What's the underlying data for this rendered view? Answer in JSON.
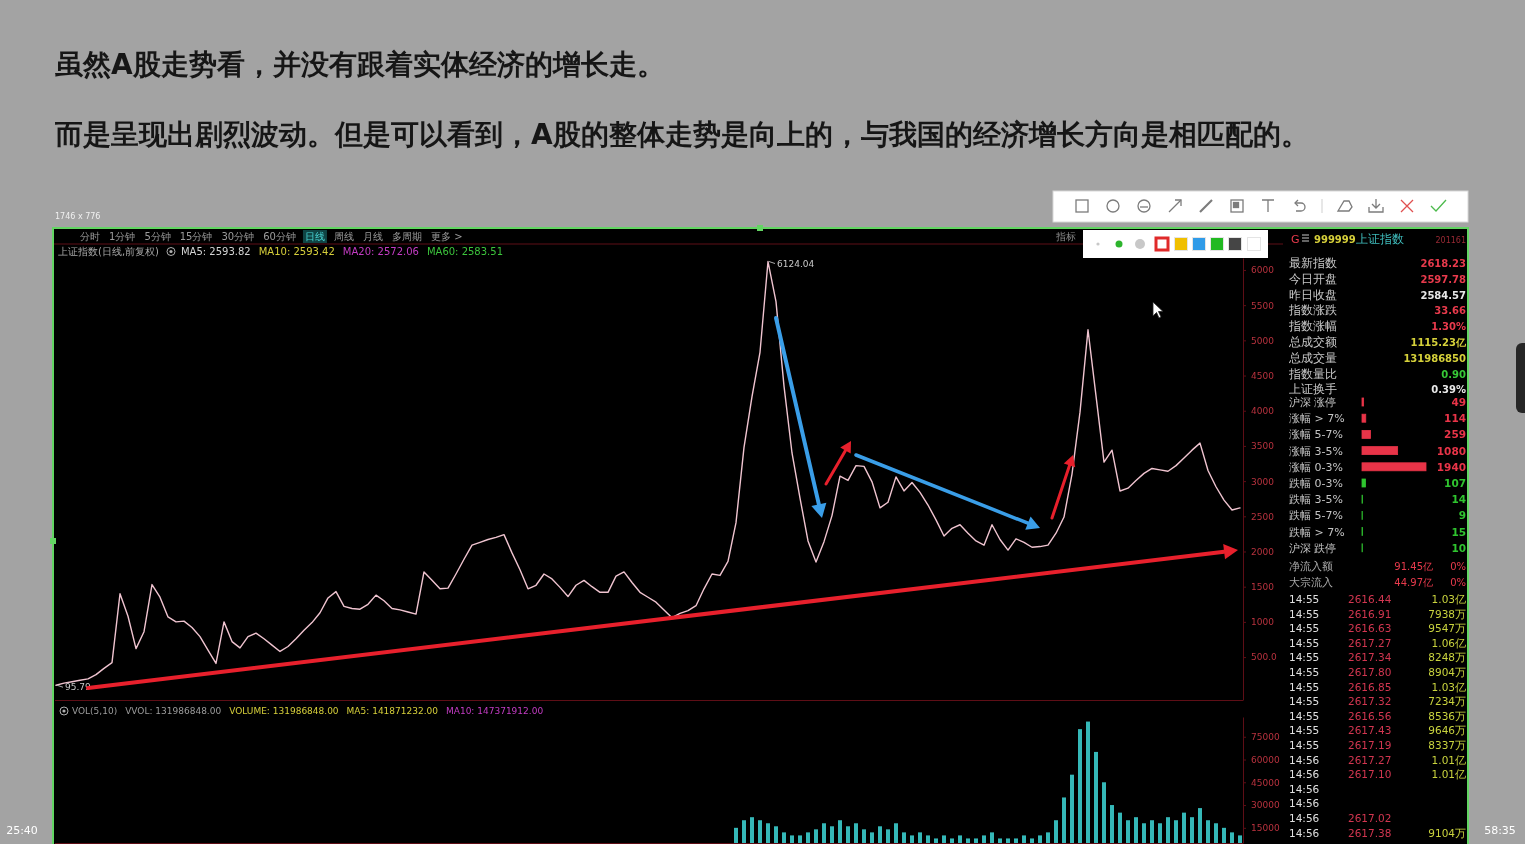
{
  "chart_data": [
    {
      "type": "line",
      "title": "虽然A股走势看，并没有跟着实体经济的增长走。",
      "subtitle": "而是呈现出剧烈波动。但是可以看到，A股的整体走势是向上的，与我国的经济增长方向是相匹配的。",
      "categories": [
        null,
        null,
        null,
        null,
        null,
        null,
        null,
        null,
        null,
        null,
        null,
        null,
        null,
        null,
        null,
        null,
        null,
        null,
        null,
        null,
        null,
        null,
        null,
        null,
        null,
        null,
        null,
        null,
        null,
        null,
        null,
        null,
        null,
        null,
        null,
        null,
        null,
        null,
        null,
        null,
        null,
        null,
        null,
        null,
        null,
        null,
        null,
        null,
        null,
        null,
        null,
        null,
        null,
        null,
        null,
        null,
        null,
        null,
        null,
        null,
        null,
        null,
        null,
        null,
        null,
        null,
        null,
        null,
        null,
        null,
        null,
        null,
        null,
        null,
        null,
        null,
        null,
        null,
        null,
        null,
        null,
        null,
        null,
        null,
        null,
        null,
        null,
        null,
        null,
        null,
        null,
        null,
        null,
        null,
        null,
        null,
        null,
        null,
        null,
        null,
        null,
        null,
        null,
        null,
        null,
        null,
        null,
        null,
        null,
        null,
        null,
        null,
        null,
        null,
        null,
        null,
        null,
        null,
        null,
        null,
        null,
        null,
        null,
        null,
        null,
        null,
        null,
        null,
        null,
        null,
        null,
        null,
        null,
        null,
        null,
        null,
        null,
        null,
        null,
        null,
        null,
        null,
        null,
        null,
        null,
        null,
        null,
        null,
        null
      ],
      "series": [
        {
          "color": "#f0c4d0",
          "values": [
            100,
            130,
            150,
            170,
            190,
            250,
            340,
            420,
            1400,
            1080,
            620,
            860,
            1530,
            1350,
            1070,
            1000,
            1010,
            920,
            790,
            600,
            410,
            1000,
            720,
            630,
            790,
            840,
            760,
            670,
            580,
            650,
            760,
            880,
            990,
            1130,
            1340,
            1430,
            1220,
            1190,
            1180,
            1250,
            1380,
            1300,
            1190,
            1170,
            1140,
            1110,
            1710,
            1590,
            1470,
            1480,
            1680,
            1890,
            2090,
            2130,
            2170,
            2200,
            2240,
            1980,
            1740,
            1470,
            1520,
            1680,
            1610,
            1490,
            1360,
            1520,
            1590,
            1500,
            1420,
            1420,
            1650,
            1710,
            1560,
            1420,
            1350,
            1280,
            1170,
            1060,
            1120,
            1160,
            1230,
            1470,
            1680,
            1660,
            1860,
            2410,
            3480,
            4200,
            4830,
            6120,
            5550,
            4350,
            3400,
            2760,
            2150,
            1850,
            2140,
            2510,
            3070,
            3010,
            3220,
            3210,
            2990,
            2620,
            2700,
            3060,
            2860,
            2980,
            2840,
            2660,
            2450,
            2220,
            2330,
            2380,
            2260,
            2150,
            2090,
            2380,
            2170,
            2020,
            2180,
            2130,
            2060,
            2070,
            2090,
            2260,
            2490,
            3100,
            3980,
            5150,
            4210,
            3270,
            3440,
            2860,
            2900,
            3010,
            3110,
            3180,
            3160,
            3140,
            3220,
            3330,
            3440,
            3540,
            3150,
            2920,
            2730,
            2590,
            2620
          ]
        }
      ],
      "ylim": [
        -110,
        6170
      ],
      "yticks": [
        {
          "value": 500,
          "label": "500.0"
        },
        1000,
        1500,
        2000,
        2500,
        3000,
        3500,
        4000,
        4500,
        5000,
        5500,
        6000
      ],
      "tick_labels": "y",
      "annotations": [
        "6124.04",
        "95.79",
        "1746 x 776",
        "分时",
        "1分钟",
        "5分钟",
        "15分钟",
        "30分钟",
        "60分钟",
        "日线",
        "周线",
        "月线",
        "多周期",
        "更多 >",
        "指标",
        "上证指数(日线,前复权)",
        "MA5: 2593.82",
        "MA10: 2593.42",
        "MA20: 2572.06",
        "MA60: 2583.51"
      ]
    },
    {
      "type": "bar",
      "categories": [
        null,
        null,
        null,
        null,
        null,
        null,
        null,
        null,
        null,
        null,
        null,
        null,
        null,
        null,
        null,
        null,
        null,
        null,
        null,
        null,
        null,
        null,
        null,
        null,
        null,
        null,
        null,
        null,
        null,
        null,
        null,
        null,
        null,
        null,
        null,
        null,
        null,
        null,
        null,
        null,
        null,
        null,
        null,
        null,
        null,
        null,
        null,
        null,
        null,
        null,
        null,
        null,
        null,
        null,
        null,
        null,
        null,
        null,
        null,
        null,
        null,
        null,
        null,
        null,
        null,
        null,
        null,
        null,
        null,
        null,
        null,
        null,
        null,
        null,
        null,
        null,
        null,
        null,
        null,
        null,
        null,
        null,
        null,
        null,
        null,
        null,
        null,
        null,
        null,
        null,
        null,
        null,
        null,
        null,
        null,
        null,
        null,
        null,
        null,
        null,
        null,
        null,
        null,
        null,
        null,
        null,
        null,
        null,
        null,
        null,
        null,
        null,
        null,
        null,
        null,
        null,
        null,
        null,
        null,
        null,
        null,
        null,
        null,
        null,
        null,
        null,
        null,
        null,
        null,
        null,
        null,
        null,
        null,
        null,
        null,
        null,
        null,
        null,
        null,
        null,
        null,
        null,
        null,
        null,
        null,
        null,
        null,
        null,
        null
      ],
      "values": [
        null,
        null,
        null,
        null,
        null,
        null,
        null,
        null,
        null,
        null,
        null,
        null,
        null,
        null,
        null,
        null,
        null,
        null,
        null,
        null,
        null,
        null,
        null,
        null,
        null,
        null,
        null,
        null,
        null,
        null,
        null,
        null,
        null,
        null,
        null,
        null,
        null,
        null,
        null,
        null,
        null,
        null,
        null,
        null,
        null,
        null,
        null,
        null,
        null,
        null,
        null,
        null,
        null,
        null,
        null,
        null,
        null,
        null,
        null,
        null,
        null,
        null,
        null,
        null,
        null,
        null,
        null,
        null,
        null,
        null,
        null,
        null,
        null,
        null,
        null,
        null,
        null,
        null,
        null,
        null,
        null,
        null,
        null,
        null,
        null,
        15000,
        20000,
        22000,
        20000,
        18000,
        16000,
        12000,
        10000,
        10000,
        12000,
        14000,
        18000,
        16000,
        20000,
        16000,
        18000,
        14000,
        12000,
        16000,
        14000,
        18000,
        12000,
        10000,
        12000,
        10000,
        8000,
        10000,
        8000,
        10000,
        8000,
        8000,
        10000,
        12000,
        8000,
        8000,
        8000,
        10000,
        8000,
        10000,
        12000,
        20000,
        35000,
        50000,
        80000,
        85000,
        65000,
        45000,
        30000,
        25000,
        20000,
        22000,
        18000,
        20000,
        18000,
        22000,
        20000,
        25000,
        22000,
        28000,
        20000,
        18000,
        15000,
        12000,
        10000
      ],
      "color": "#35b8b8",
      "ylim": [
        5000,
        88000
      ],
      "yticks": [
        15000,
        30000,
        45000,
        60000,
        75000
      ],
      "tick_labels": "y",
      "annotations": [
        "VOL(5,10)",
        "VVOL: 131986848.00",
        "VOLUME: 131986848.00",
        "MA5: 141871232.00",
        "MA10: 147371912.00"
      ]
    },
    {
      "type": "other",
      "annotations": [
        "G",
        "999999",
        "上证指数",
        "201161",
        "最新指数 2618.23",
        "今日开盘 2597.78",
        "昨日收盘 2584.57",
        "指数涨跌 33.66",
        "指数涨幅 1.30%",
        "总成交额 1115.23亿",
        "总成交量 131986850",
        "指数量比 0.90",
        "上证换手 0.39%"
      ]
    },
    {
      "type": "bar",
      "orientation": "horizontal",
      "categories": [
        "沪深 涨停",
        "涨幅 > 7%",
        "涨幅 5-7%",
        "涨幅 3-5%",
        "涨幅 0-3%",
        "跌幅 0-3%",
        "跌幅 3-5%",
        "跌幅 5-7%",
        "跌幅 > 7%",
        "沪深 跌停"
      ],
      "values": [
        49,
        114,
        259,
        1080,
        1940,
        107,
        14,
        9,
        15,
        10
      ],
      "colors": [
        "#e83448",
        "#e83448",
        "#e83448",
        "#e83448",
        "#e83448",
        "#2fc42f",
        "#2fc42f",
        "#2fc42f",
        "#2fc42f",
        "#2fc42f"
      ],
      "data_labels": true
    },
    {
      "type": "other",
      "annotations": [
        "净流入额 91.45亿 0%",
        "大宗流入 44.97亿 0%",
        "14:55 2616.44 1.03亿",
        "14:55 2616.91 7938万",
        "14:55 2616.63 9547万",
        "14:55 2617.27 1.06亿",
        "14:55 2617.34 8248万",
        "14:55 2617.80 8904万",
        "14:55 2616.85 1.03亿",
        "14:55 2617.32 7234万",
        "14:55 2616.56 8536万",
        "14:55 2617.43 9646万",
        "14:55 2617.19 8337万",
        "14:56 2617.27 1.01亿",
        "14:56 2617.10 1.01亿",
        "14:56",
        "14:56",
        "14:56 2617.02",
        "14:56 2617.38 9104万"
      ]
    },
    {
      "type": "other",
      "annotations": [
        "25:40",
        "58:35"
      ]
    }
  ]
}
